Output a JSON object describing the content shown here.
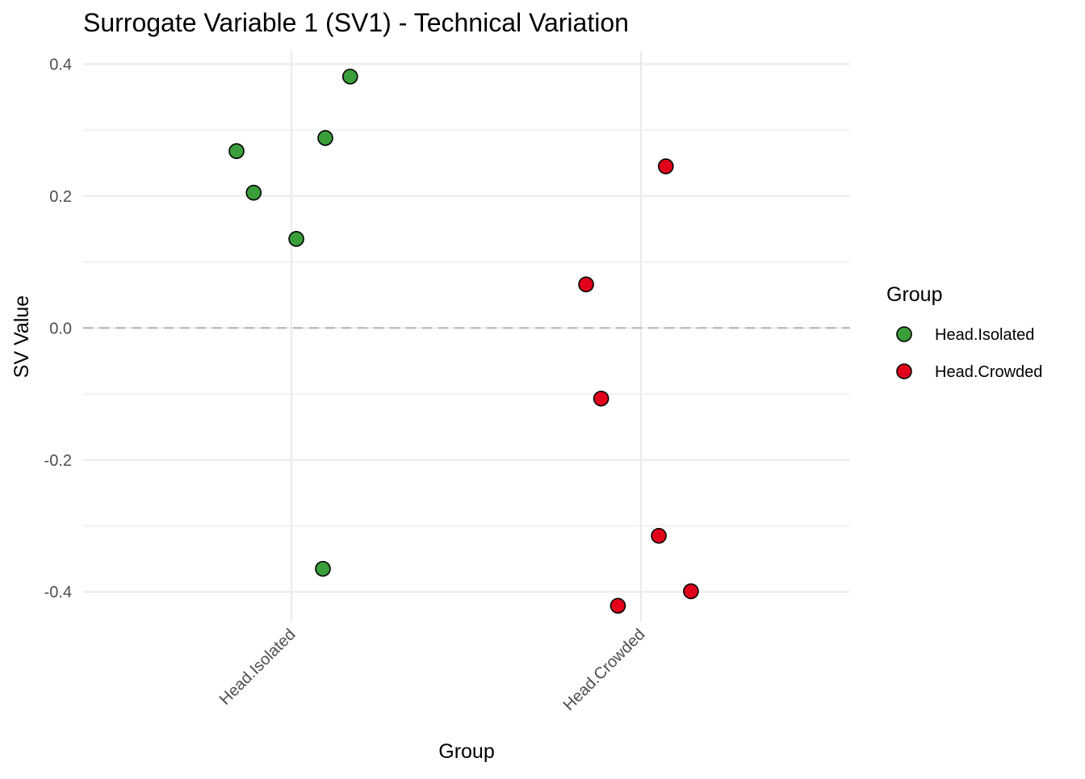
{
  "chart_data": {
    "type": "scatter",
    "title": "Surrogate Variable 1 (SV1) - Technical Variation",
    "xlabel": "Group",
    "ylabel": "SV Value",
    "categories": [
      "Head.Isolated",
      "Head.Crowded"
    ],
    "ylim": [
      -0.445,
      0.42
    ],
    "y_ticks": [
      0.4,
      0.2,
      0.0,
      -0.2,
      -0.4
    ],
    "y_tick_labels": [
      "0.4",
      "0.2",
      "0.0",
      "-0.2",
      "-0.4"
    ],
    "y_minor_ticks": [
      0.3,
      0.1,
      -0.1,
      -0.3
    ],
    "reference_line": {
      "y": 0.0,
      "style": "dashed"
    },
    "grid": true,
    "legend": {
      "title": "Group",
      "placement": "right",
      "entries": [
        {
          "label": "Head.Isolated",
          "color": "#3a9f3a"
        },
        {
          "label": "Head.Crowded",
          "color": "#e0001b"
        }
      ]
    },
    "series": [
      {
        "name": "Head.Isolated",
        "color": "#3a9f3a",
        "points": [
          {
            "category": "Head.Isolated",
            "jitter": 0.168,
            "y": 0.381
          },
          {
            "category": "Head.Isolated",
            "jitter": 0.097,
            "y": 0.288
          },
          {
            "category": "Head.Isolated",
            "jitter": -0.157,
            "y": 0.268
          },
          {
            "category": "Head.Isolated",
            "jitter": -0.108,
            "y": 0.205
          },
          {
            "category": "Head.Isolated",
            "jitter": 0.014,
            "y": 0.135
          },
          {
            "category": "Head.Isolated",
            "jitter": 0.09,
            "y": -0.365
          }
        ]
      },
      {
        "name": "Head.Crowded",
        "color": "#e0001b",
        "points": [
          {
            "category": "Head.Crowded",
            "jitter": 0.071,
            "y": 0.245
          },
          {
            "category": "Head.Crowded",
            "jitter": -0.157,
            "y": 0.066
          },
          {
            "category": "Head.Crowded",
            "jitter": -0.114,
            "y": -0.107
          },
          {
            "category": "Head.Crowded",
            "jitter": 0.051,
            "y": -0.315
          },
          {
            "category": "Head.Crowded",
            "jitter": 0.143,
            "y": -0.399
          },
          {
            "category": "Head.Crowded",
            "jitter": -0.066,
            "y": -0.421
          }
        ]
      }
    ]
  }
}
